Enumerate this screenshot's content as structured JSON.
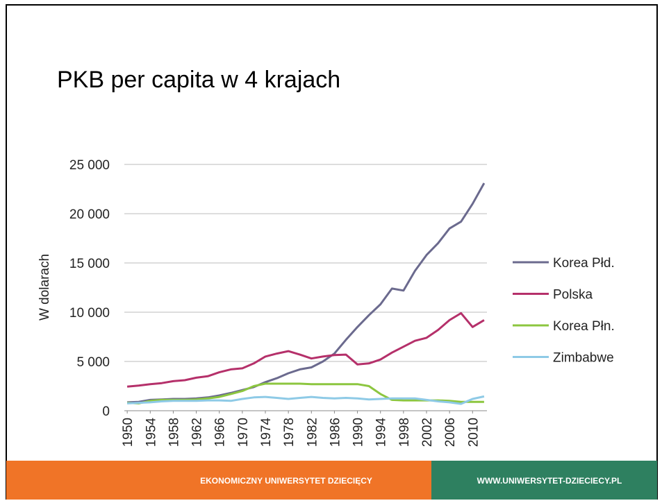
{
  "chart_data": {
    "type": "line",
    "title": "PKB per capita w 4 krajach",
    "y_label": "W dolarach",
    "x": [
      1950,
      1952,
      1954,
      1956,
      1958,
      1960,
      1962,
      1964,
      1966,
      1968,
      1970,
      1972,
      1974,
      1976,
      1978,
      1980,
      1982,
      1984,
      1986,
      1988,
      1990,
      1992,
      1994,
      1996,
      1998,
      2000,
      2002,
      2004,
      2006,
      2008,
      2010,
      2012
    ],
    "xlim": [
      1949.5,
      2012.5
    ],
    "xticks": [
      1950,
      1954,
      1958,
      1962,
      1966,
      1970,
      1974,
      1978,
      1982,
      1986,
      1990,
      1994,
      1998,
      2002,
      2006,
      2010
    ],
    "ylim": [
      0,
      25000
    ],
    "yticks": [
      0,
      {
        "value": 5000,
        "label": "5 000"
      },
      {
        "value": 10000,
        "label": "10 000"
      },
      {
        "value": 15000,
        "label": "15 000"
      },
      {
        "value": 20000,
        "label": "20 000"
      },
      {
        "value": 25000,
        "label": "25 000"
      }
    ],
    "grid": true,
    "legend": "right",
    "series": [
      {
        "name": "Korea Płd.",
        "color": "#6b6a8e",
        "values": [
          850,
          900,
          1100,
          1150,
          1200,
          1200,
          1250,
          1350,
          1550,
          1800,
          2100,
          2400,
          2900,
          3300,
          3800,
          4200,
          4400,
          5000,
          5800,
          7200,
          8500,
          9700,
          10800,
          12400,
          12200,
          14200,
          15800,
          17000,
          18500,
          19200,
          21000,
          23100
        ]
      },
      {
        "name": "Polska",
        "color": "#b5306a",
        "values": [
          2450,
          2550,
          2700,
          2800,
          3000,
          3100,
          3350,
          3500,
          3900,
          4200,
          4300,
          4800,
          5500,
          5800,
          6050,
          5700,
          5300,
          5500,
          5650,
          5700,
          4700,
          4800,
          5200,
          5900,
          6500,
          7100,
          7400,
          8200,
          9200,
          9900,
          8500,
          9200
        ]
      },
      {
        "name": "Korea Płn.",
        "color": "#8cc63f",
        "values": [
          800,
          750,
          1000,
          1100,
          1100,
          1100,
          1150,
          1250,
          1400,
          1700,
          2000,
          2500,
          2750,
          2750,
          2750,
          2750,
          2700,
          2700,
          2700,
          2700,
          2700,
          2500,
          1700,
          1100,
          1050,
          1050,
          1050,
          1050,
          1000,
          900,
          900,
          900
        ]
      },
      {
        "name": "Zimbabwe",
        "color": "#8ecae6",
        "values": [
          750,
          800,
          850,
          950,
          1000,
          1000,
          1000,
          1050,
          1050,
          1000,
          1200,
          1350,
          1400,
          1300,
          1200,
          1300,
          1400,
          1300,
          1250,
          1300,
          1250,
          1150,
          1200,
          1250,
          1250,
          1250,
          1100,
          950,
          850,
          700,
          1200,
          1450
        ]
      }
    ]
  },
  "footer": {
    "left": "EKONOMICZNY UNIWERSYTET DZIECIĘCY",
    "right": "WWW.UNIWERSYTET-DZIECIECY.PL"
  }
}
